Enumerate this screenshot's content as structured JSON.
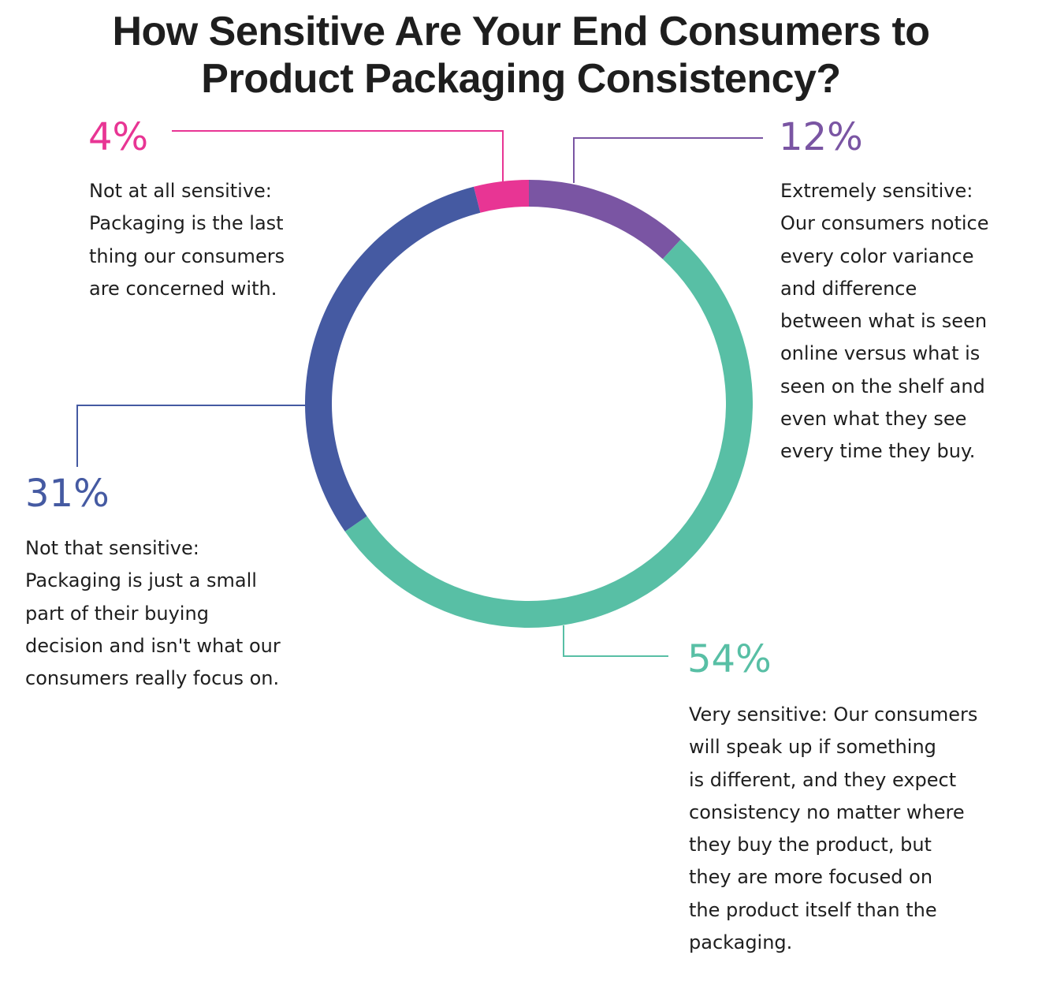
{
  "chart_data": {
    "type": "pie",
    "variant": "donut",
    "title": "How Sensitive Are Your End Consumers to Product Packaging Consistency?",
    "title_lines": [
      "How Sensitive Are Your End Consumers to",
      "Product Packaging Consistency?"
    ],
    "slices": [
      {
        "key": "extremely",
        "value": 12,
        "label": "12%",
        "color": "#7a55a3",
        "description_lines": [
          "Extremely sensitive:",
          "Our consumers notice",
          "every color variance",
          "and difference",
          "between what is seen",
          "online versus what is",
          "seen on the shelf and",
          "even what they see",
          "every time they buy."
        ]
      },
      {
        "key": "very",
        "value": 54,
        "label": "54%",
        "color": "#58bfa5",
        "description_lines": [
          "Very sensitive: Our consumers",
          "will speak up if something",
          "is different, and they expect",
          "consistency no matter where",
          "they buy the product, but",
          "they are more focused on",
          "the product itself than the",
          "packaging."
        ]
      },
      {
        "key": "not_that",
        "value": 31,
        "label": "31%",
        "color": "#455aa2",
        "description_lines": [
          "Not that sensitive:",
          "Packaging is just a small",
          "part of their buying",
          "decision and isn't what our",
          "consumers really focus on."
        ]
      },
      {
        "key": "not_at_all",
        "value": 4,
        "label": "4%",
        "color": "#e83594",
        "description_lines": [
          "Not at all sensitive:",
          "Packaging is the last",
          "thing our consumers",
          "are concerned with."
        ]
      }
    ]
  }
}
